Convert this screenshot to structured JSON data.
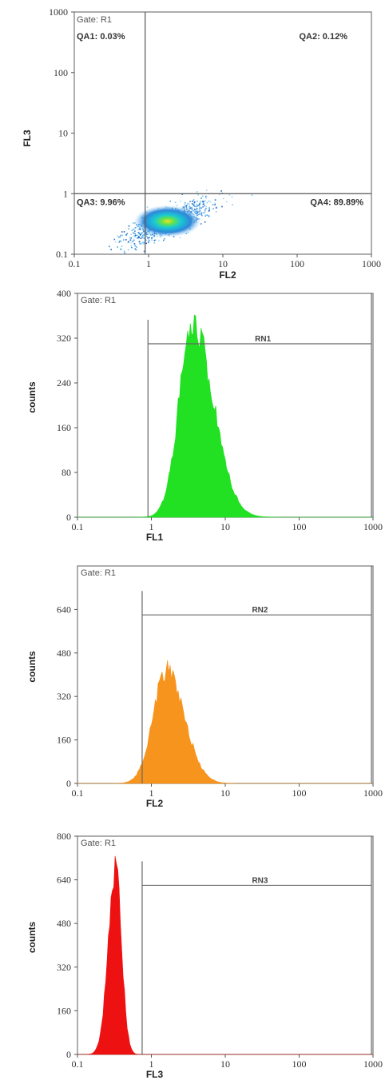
{
  "chart_data": [
    {
      "type": "scatter",
      "gate_label": "Gate: R1",
      "xlabel": "FL2",
      "ylabel": "FL3",
      "x_scale": "log",
      "y_scale": "log",
      "xlim": [
        0.1,
        1000
      ],
      "ylim": [
        0.1,
        1000
      ],
      "x_tick_labels": [
        "0.1",
        "1",
        "10",
        "100",
        "1000"
      ],
      "y_tick_labels": [
        "0.1",
        "1",
        "10",
        "100",
        "1000"
      ],
      "quadrant_divider": {
        "x": 0.9,
        "y": 1.0
      },
      "quadrants": [
        {
          "name": "QA1",
          "label": "QA1: 0.03%",
          "percent": 0.03,
          "position": "top-left"
        },
        {
          "name": "QA2",
          "label": "QA2: 0.12%",
          "percent": 0.12,
          "position": "top-right"
        },
        {
          "name": "QA3",
          "label": "QA3: 9.96%",
          "percent": 9.96,
          "position": "bottom-left"
        },
        {
          "name": "QA4",
          "label": "QA4: 89.89%",
          "percent": 89.89,
          "position": "bottom-right"
        }
      ],
      "population": {
        "center_x": 1.8,
        "center_y": 0.35
      },
      "density_colors": [
        "#9fd6f4",
        "#2f86d8",
        "#19c9d4",
        "#66e34a",
        "#f2e02a"
      ]
    },
    {
      "type": "histogram",
      "gate_label": "Gate: R1",
      "xlabel": "FL1",
      "ylabel": "counts",
      "x_scale": "log",
      "xlim": [
        0.1,
        1000
      ],
      "ylim": [
        0,
        400
      ],
      "x_tick_labels": [
        "0.1",
        "1",
        "10",
        "100",
        "1000"
      ],
      "y_tick_labels": [
        "0",
        "80",
        "160",
        "240",
        "320",
        "400"
      ],
      "marker": {
        "label": "RN1",
        "from": 0.9,
        "to": 1000,
        "level": 310
      },
      "fill_color": "#22e022",
      "peak": {
        "x": 3.6,
        "count": 350
      }
    },
    {
      "type": "histogram",
      "gate_label": "Gate: R1",
      "xlabel": "FL2",
      "ylabel": "counts",
      "x_scale": "log",
      "xlim": [
        0.1,
        1000
      ],
      "ylim": [
        0,
        800
      ],
      "x_tick_labels": [
        "0.1",
        "1",
        "10",
        "100",
        "1000"
      ],
      "y_tick_labels": [
        "0",
        "160",
        "320",
        "480",
        "640"
      ],
      "marker": {
        "label": "RN2",
        "from": 0.75,
        "to": 1000,
        "level": 620
      },
      "fill_color": "#f7941d",
      "peak": {
        "x": 1.6,
        "count": 420
      }
    },
    {
      "type": "histogram",
      "gate_label": "Gate: R1",
      "xlabel": "FL3",
      "ylabel": "counts",
      "x_scale": "log",
      "xlim": [
        0.1,
        1000
      ],
      "ylim": [
        0,
        800
      ],
      "x_tick_labels": [
        "0.1",
        "1",
        "10",
        "100",
        "1000"
      ],
      "y_tick_labels": [
        "0",
        "160",
        "320",
        "480",
        "640",
        "800"
      ],
      "marker": {
        "label": "RN3",
        "from": 0.75,
        "to": 1000,
        "level": 620
      },
      "fill_color": "#ee1111",
      "peak": {
        "x": 0.33,
        "count": 680
      }
    }
  ]
}
